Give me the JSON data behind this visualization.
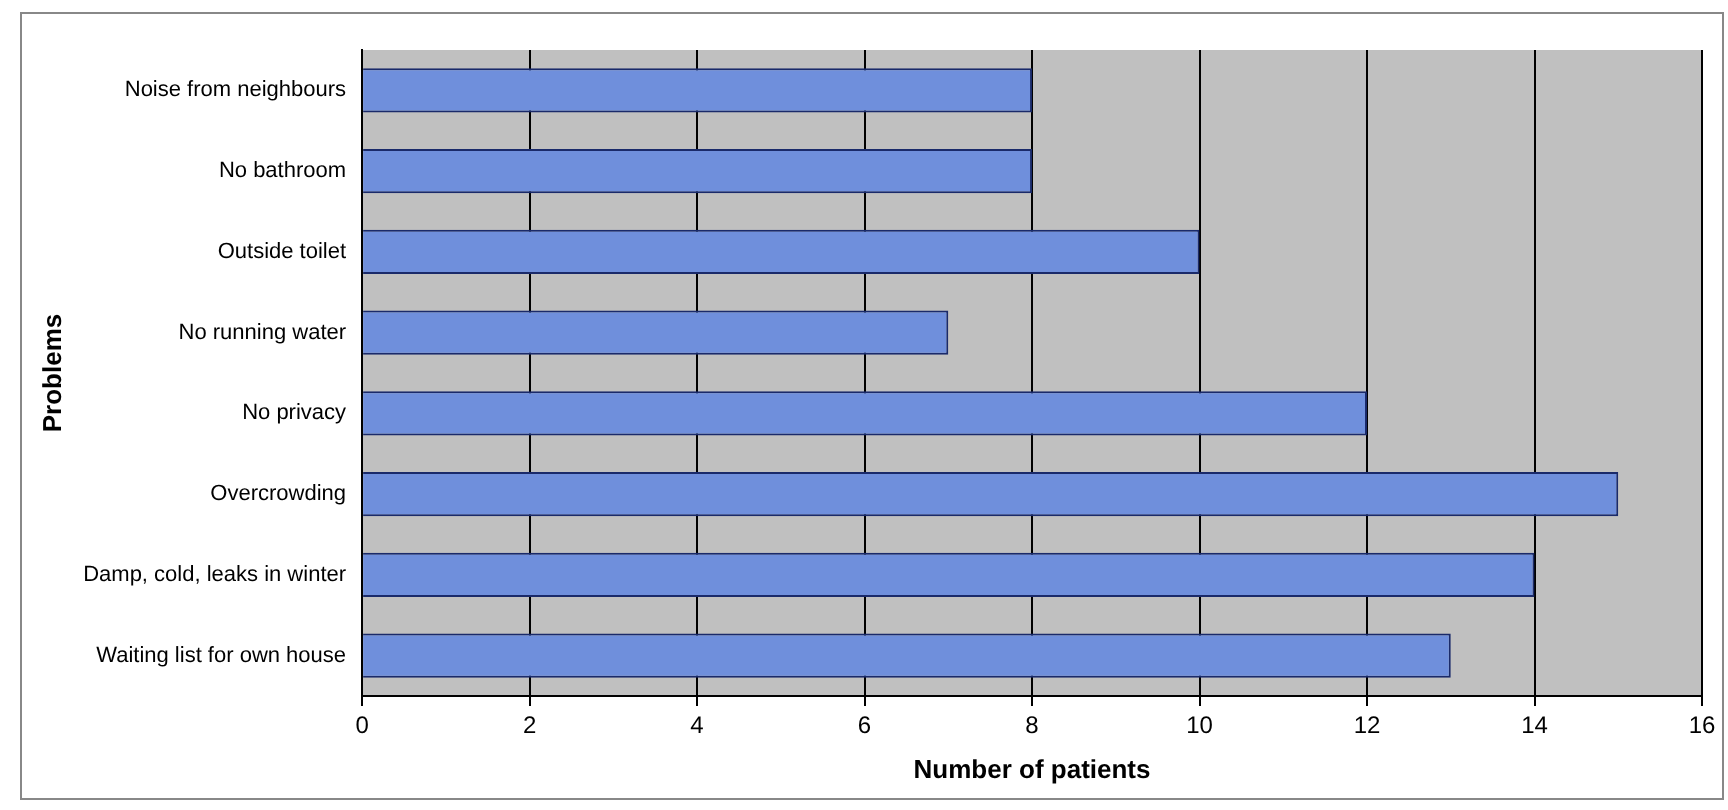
{
  "chart_data": {
    "type": "bar",
    "orientation": "horizontal",
    "xlabel": "Number of patients",
    "ylabel": "Problems",
    "categories": [
      "Noise from neighbours",
      "No bathroom",
      "Outside toilet",
      "No running water",
      "No privacy",
      "Overcrowding",
      "Damp, cold, leaks in winter",
      "Waiting list for own house"
    ],
    "values": [
      8,
      8,
      10,
      7,
      12,
      15,
      14,
      13
    ],
    "color": "#6f8fdc",
    "xlim": [
      0,
      16
    ],
    "xticks": [
      0,
      2,
      4,
      6,
      8,
      10,
      12,
      14,
      16
    ],
    "grid": "x",
    "legend": false
  }
}
